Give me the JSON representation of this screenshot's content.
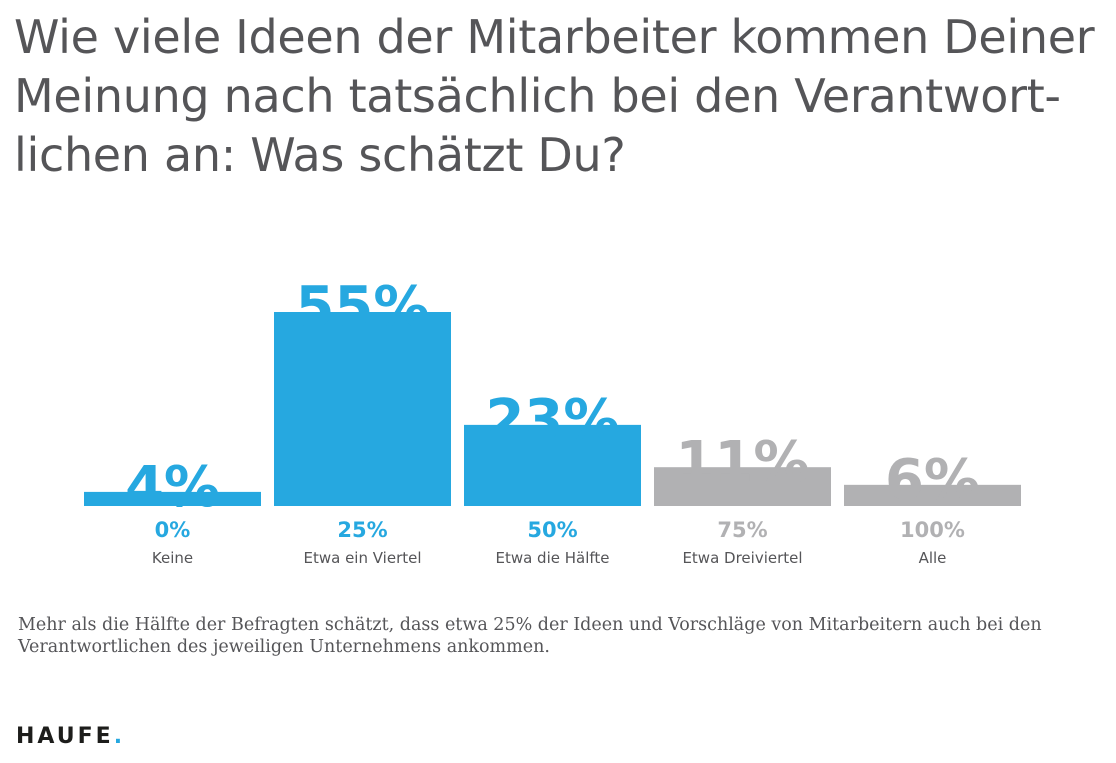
{
  "title": "Wie viele Ideen der Mitarbeiter kommen Deiner Meinung nach tatsächlich bei den Verantwort-lichen an: Was schätzt Du?",
  "caption": "Mehr als die Hälfte der Befragten schätzt, dass etwa 25% der Ideen und Vorschläge von Mitarbeitern auch bei den Verantwortlichen des jeweiligen Unternehmens ankommen.",
  "logo": {
    "text": "HAUFE",
    "dot": "."
  },
  "colors": {
    "blue": "#26a8e0",
    "gray": "#b1b1b3",
    "text": "#555558"
  },
  "chart_data": {
    "type": "bar",
    "categories": [
      "Keine",
      "Etwa ein Viertel",
      "Etwa die Hälfte",
      "Etwa Dreiviertel",
      "Alle"
    ],
    "category_values": [
      "0%",
      "25%",
      "50%",
      "75%",
      "100%"
    ],
    "values": [
      4,
      55,
      23,
      11,
      6
    ],
    "value_labels": [
      "4%",
      "55%",
      "23%",
      "11%",
      "6%"
    ],
    "bar_colors": [
      "blue",
      "blue",
      "blue",
      "gray",
      "gray"
    ],
    "unit": "%",
    "ylim": [
      0,
      55
    ],
    "grid": false,
    "legend": "none"
  }
}
